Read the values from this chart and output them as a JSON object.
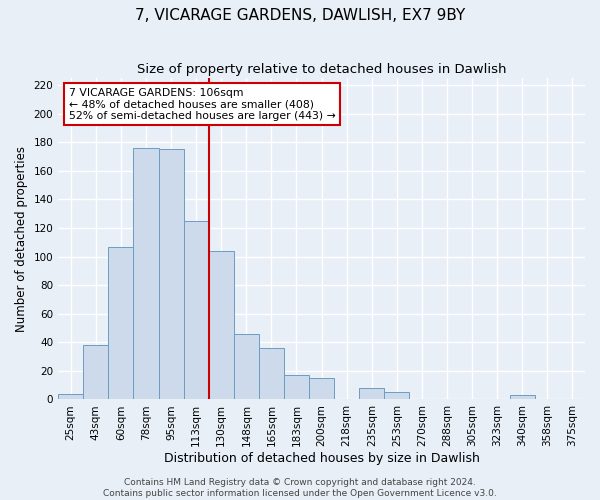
{
  "title": "7, VICARAGE GARDENS, DAWLISH, EX7 9BY",
  "subtitle": "Size of property relative to detached houses in Dawlish",
  "xlabel": "Distribution of detached houses by size in Dawlish",
  "ylabel": "Number of detached properties",
  "bar_labels": [
    "25sqm",
    "43sqm",
    "60sqm",
    "78sqm",
    "95sqm",
    "113sqm",
    "130sqm",
    "148sqm",
    "165sqm",
    "183sqm",
    "200sqm",
    "218sqm",
    "235sqm",
    "253sqm",
    "270sqm",
    "288sqm",
    "305sqm",
    "323sqm",
    "340sqm",
    "358sqm",
    "375sqm"
  ],
  "bar_values": [
    4,
    38,
    107,
    176,
    175,
    125,
    104,
    46,
    36,
    17,
    15,
    0,
    8,
    5,
    0,
    0,
    0,
    0,
    3,
    0,
    0
  ],
  "bar_color": "#cddaeb",
  "bar_edge_color": "#6b9dc2",
  "vline_x": 5.5,
  "vline_color": "#cc0000",
  "annotation_title": "7 VICARAGE GARDENS: 106sqm",
  "annotation_line1": "← 48% of detached houses are smaller (408)",
  "annotation_line2": "52% of semi-detached houses are larger (443) →",
  "annotation_box_color": "#ffffff",
  "annotation_box_edge": "#cc0000",
  "ylim": [
    0,
    225
  ],
  "yticks": [
    0,
    20,
    40,
    60,
    80,
    100,
    120,
    140,
    160,
    180,
    200,
    220
  ],
  "footer_line1": "Contains HM Land Registry data © Crown copyright and database right 2024.",
  "footer_line2": "Contains public sector information licensed under the Open Government Licence v3.0.",
  "background_color": "#e8eff7",
  "grid_color": "#ffffff",
  "title_fontsize": 11,
  "subtitle_fontsize": 9.5,
  "axis_label_fontsize": 8.5,
  "tick_fontsize": 7.5,
  "footer_fontsize": 6.5,
  "ann_fontsize": 7.8
}
